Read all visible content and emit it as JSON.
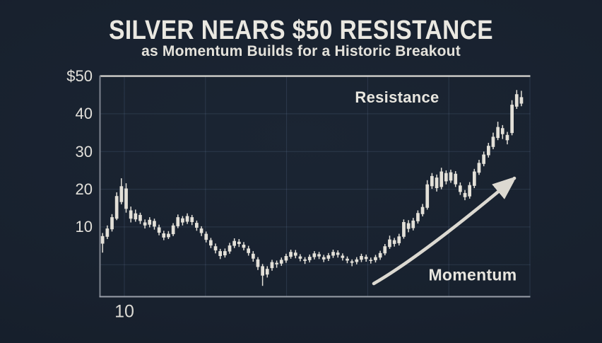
{
  "header": {
    "title": "SILVER NEARS $50 RESISTANCE",
    "subtitle": "as Momentum Builds for a Historic Breakout"
  },
  "annotations": {
    "resistance_label": "Resistance",
    "momentum_label": "Momentum"
  },
  "colors": {
    "background": "#18212e",
    "text": "#eae8e1",
    "candle": "#e3e0d8",
    "resistance_line": "#d3d2cd",
    "axis_line": "#9aa0a9",
    "gridline": "#2c3a4e",
    "arrow": "#dcd9d1"
  },
  "chart_data": {
    "type": "candlestick",
    "title": "SILVER NEARS $50 RESISTANCE",
    "subtitle": "as Momentum Builds for a Historic Breakout",
    "resistance_level": 50,
    "y_axis": {
      "tick_labels": [
        "$50",
        "40",
        "30",
        "20",
        "10"
      ],
      "tick_values": [
        50,
        40,
        30,
        20,
        10
      ],
      "gridline_values": [
        40,
        30,
        20,
        10,
        0
      ],
      "ylim": [
        -8.5,
        50
      ]
    },
    "x_axis": {
      "tick_labels": [
        "10"
      ],
      "vertical_gridlines": 6
    },
    "legend": "none",
    "candles_format": [
      "open",
      "close",
      "low",
      "high"
    ],
    "candles": [
      [
        5.6,
        7.6,
        3.2,
        8.4
      ],
      [
        7.4,
        9.6,
        6.8,
        10.4
      ],
      [
        9.4,
        12.6,
        8.8,
        13.4
      ],
      [
        12.2,
        18.2,
        11.8,
        19.2
      ],
      [
        16.6,
        20.8,
        16.0,
        22.9
      ],
      [
        20.2,
        14.8,
        13.8,
        21.6
      ],
      [
        14.4,
        12.2,
        11.2,
        15.4
      ],
      [
        12.0,
        13.6,
        11.4,
        14.6
      ],
      [
        13.2,
        11.6,
        10.8,
        13.8
      ],
      [
        11.2,
        10.4,
        9.6,
        12.0
      ],
      [
        10.6,
        11.9,
        9.9,
        12.6
      ],
      [
        11.6,
        10.1,
        9.3,
        12.2
      ],
      [
        9.9,
        8.5,
        7.8,
        10.6
      ],
      [
        8.3,
        7.2,
        6.5,
        9.0
      ],
      [
        7.3,
        8.2,
        6.8,
        8.9
      ],
      [
        8.1,
        10.4,
        7.6,
        11.0
      ],
      [
        10.2,
        12.6,
        9.7,
        13.3
      ],
      [
        12.3,
        11.2,
        10.4,
        12.9
      ],
      [
        11.4,
        12.9,
        10.8,
        13.6
      ],
      [
        12.6,
        11.3,
        10.5,
        13.2
      ],
      [
        11.1,
        9.8,
        9.0,
        11.7
      ],
      [
        9.6,
        8.4,
        7.6,
        10.2
      ],
      [
        8.2,
        6.6,
        5.9,
        8.8
      ],
      [
        6.5,
        5.1,
        4.4,
        7.1
      ],
      [
        4.9,
        3.8,
        3.0,
        5.6
      ],
      [
        3.6,
        2.3,
        1.5,
        4.2
      ],
      [
        2.5,
        3.6,
        1.9,
        4.3
      ],
      [
        3.5,
        5.1,
        2.9,
        5.8
      ],
      [
        5.0,
        6.3,
        4.4,
        7.0
      ],
      [
        6.1,
        5.5,
        4.7,
        6.8
      ],
      [
        5.3,
        4.5,
        3.8,
        6.0
      ],
      [
        4.3,
        3.1,
        2.4,
        5.0
      ],
      [
        2.9,
        1.6,
        0.8,
        3.6
      ],
      [
        1.4,
        -0.6,
        -1.4,
        2.0
      ],
      [
        -0.4,
        -2.9,
        -5.6,
        0.2
      ],
      [
        -2.6,
        -1.1,
        -3.4,
        -0.4
      ],
      [
        -0.9,
        0.7,
        -1.6,
        1.3
      ],
      [
        0.5,
        0.1,
        -0.8,
        1.1
      ],
      [
        0.3,
        1.3,
        -0.3,
        1.9
      ],
      [
        1.1,
        2.3,
        0.5,
        2.9
      ],
      [
        2.1,
        3.4,
        1.6,
        4.0
      ],
      [
        3.2,
        2.4,
        1.7,
        3.9
      ],
      [
        2.2,
        1.6,
        0.9,
        2.8
      ],
      [
        1.4,
        1.0,
        0.2,
        2.0
      ],
      [
        1.2,
        2.1,
        0.6,
        2.7
      ],
      [
        2.0,
        3.0,
        1.4,
        3.6
      ],
      [
        2.8,
        2.2,
        1.5,
        3.4
      ],
      [
        2.0,
        1.4,
        0.7,
        2.6
      ],
      [
        1.6,
        2.5,
        1.0,
        3.1
      ],
      [
        2.4,
        3.4,
        1.8,
        4.0
      ],
      [
        3.2,
        2.6,
        1.9,
        3.8
      ],
      [
        2.4,
        1.8,
        1.1,
        3.0
      ],
      [
        1.6,
        1.1,
        0.4,
        2.2
      ],
      [
        0.9,
        0.5,
        -0.4,
        1.4
      ],
      [
        0.7,
        1.4,
        0.1,
        2.0
      ],
      [
        1.3,
        2.3,
        0.7,
        2.9
      ],
      [
        2.1,
        1.5,
        0.8,
        2.7
      ],
      [
        1.3,
        1.0,
        0.3,
        1.9
      ],
      [
        1.2,
        2.0,
        0.6,
        2.6
      ],
      [
        1.9,
        3.1,
        1.3,
        3.7
      ],
      [
        3.0,
        4.9,
        2.5,
        5.5
      ],
      [
        4.7,
        6.7,
        4.2,
        7.7
      ],
      [
        6.5,
        5.5,
        4.8,
        7.1
      ],
      [
        5.7,
        7.5,
        5.1,
        8.2
      ],
      [
        7.4,
        11.3,
        6.9,
        12.0
      ],
      [
        11.0,
        9.5,
        8.6,
        11.8
      ],
      [
        9.7,
        11.7,
        9.1,
        12.4
      ],
      [
        11.5,
        13.7,
        10.9,
        14.4
      ],
      [
        13.4,
        15.3,
        12.8,
        16.1
      ],
      [
        15.1,
        21.3,
        14.6,
        22.4
      ],
      [
        20.8,
        23.5,
        20.1,
        24.3
      ],
      [
        23.1,
        20.3,
        19.4,
        23.9
      ],
      [
        20.6,
        24.7,
        20.0,
        25.7
      ],
      [
        24.3,
        22.1,
        21.3,
        25.0
      ],
      [
        22.3,
        24.5,
        21.7,
        25.2
      ],
      [
        24.1,
        21.3,
        20.6,
        24.8
      ],
      [
        21.0,
        19.3,
        18.5,
        21.8
      ],
      [
        19.0,
        17.9,
        17.1,
        19.8
      ],
      [
        18.1,
        21.1,
        17.5,
        21.9
      ],
      [
        20.9,
        24.7,
        20.3,
        25.4
      ],
      [
        24.4,
        27.0,
        23.8,
        27.8
      ],
      [
        26.7,
        29.2,
        26.1,
        30.0
      ],
      [
        29.0,
        31.5,
        28.4,
        32.3
      ],
      [
        31.2,
        33.9,
        30.6,
        35.0
      ],
      [
        33.6,
        36.5,
        33.0,
        37.9
      ],
      [
        36.2,
        34.6,
        33.3,
        37.0
      ],
      [
        34.4,
        33.0,
        31.9,
        35.2
      ],
      [
        34.9,
        42.4,
        34.3,
        43.6
      ],
      [
        41.9,
        45.2,
        41.3,
        46.3
      ],
      [
        42.7,
        44.4,
        42.0,
        46.1
      ]
    ]
  }
}
